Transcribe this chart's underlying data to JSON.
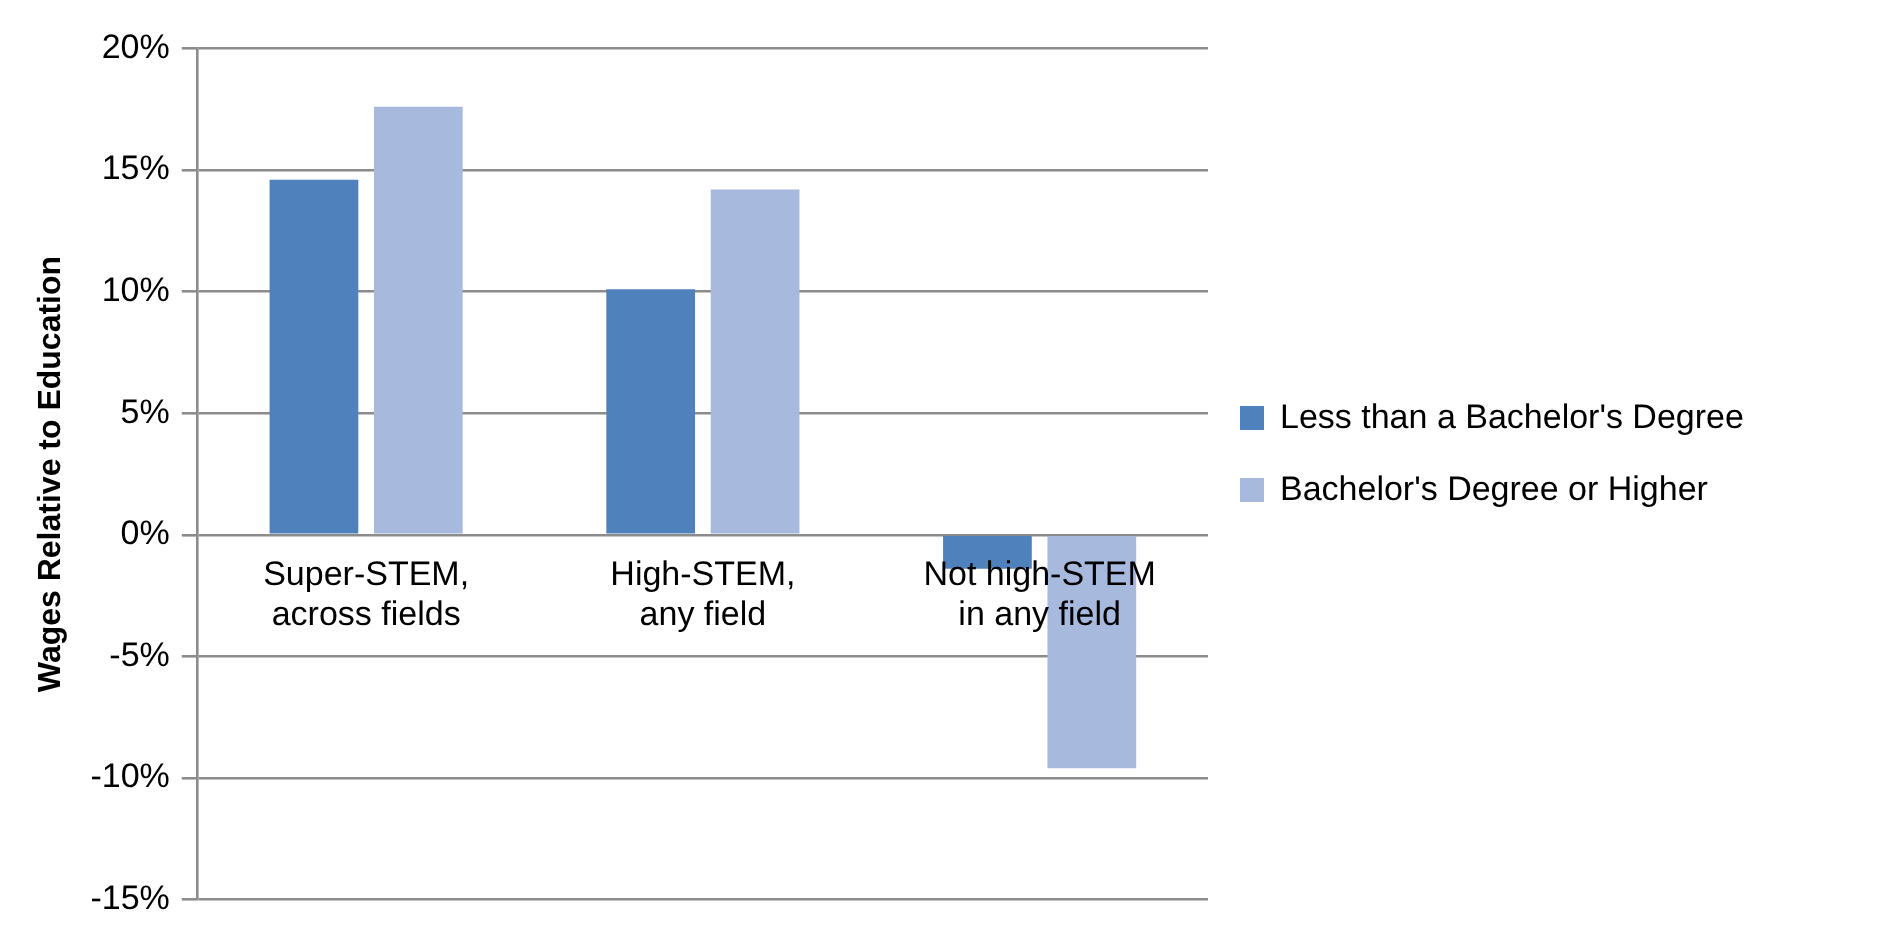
{
  "chart_data": {
    "type": "bar",
    "ylabel": "Wages Relative to Education",
    "categories": [
      "Super-STEM, across fields",
      "High-STEM, any field",
      "Not high-STEM in any field"
    ],
    "series": [
      {
        "name": "Less than a Bachelor's Degree",
        "color": "#4f81bd",
        "values": [
          14.6,
          10.1,
          -1.4
        ]
      },
      {
        "name": "Bachelor's Degree or Higher",
        "color": "#a7b9dc",
        "values": [
          17.6,
          14.2,
          -9.6
        ]
      }
    ],
    "ylim": [
      -15,
      20
    ],
    "yticks": [
      {
        "value": -15,
        "label": "-15%"
      },
      {
        "value": -10,
        "label": "-10%"
      },
      {
        "value": -5,
        "label": "-5%"
      },
      {
        "value": 0,
        "label": "0%"
      },
      {
        "value": 5,
        "label": "5%"
      },
      {
        "value": 10,
        "label": "10%"
      },
      {
        "value": 15,
        "label": "15%"
      },
      {
        "value": 20,
        "label": "20%"
      }
    ],
    "grid": "y",
    "legend": "right"
  }
}
